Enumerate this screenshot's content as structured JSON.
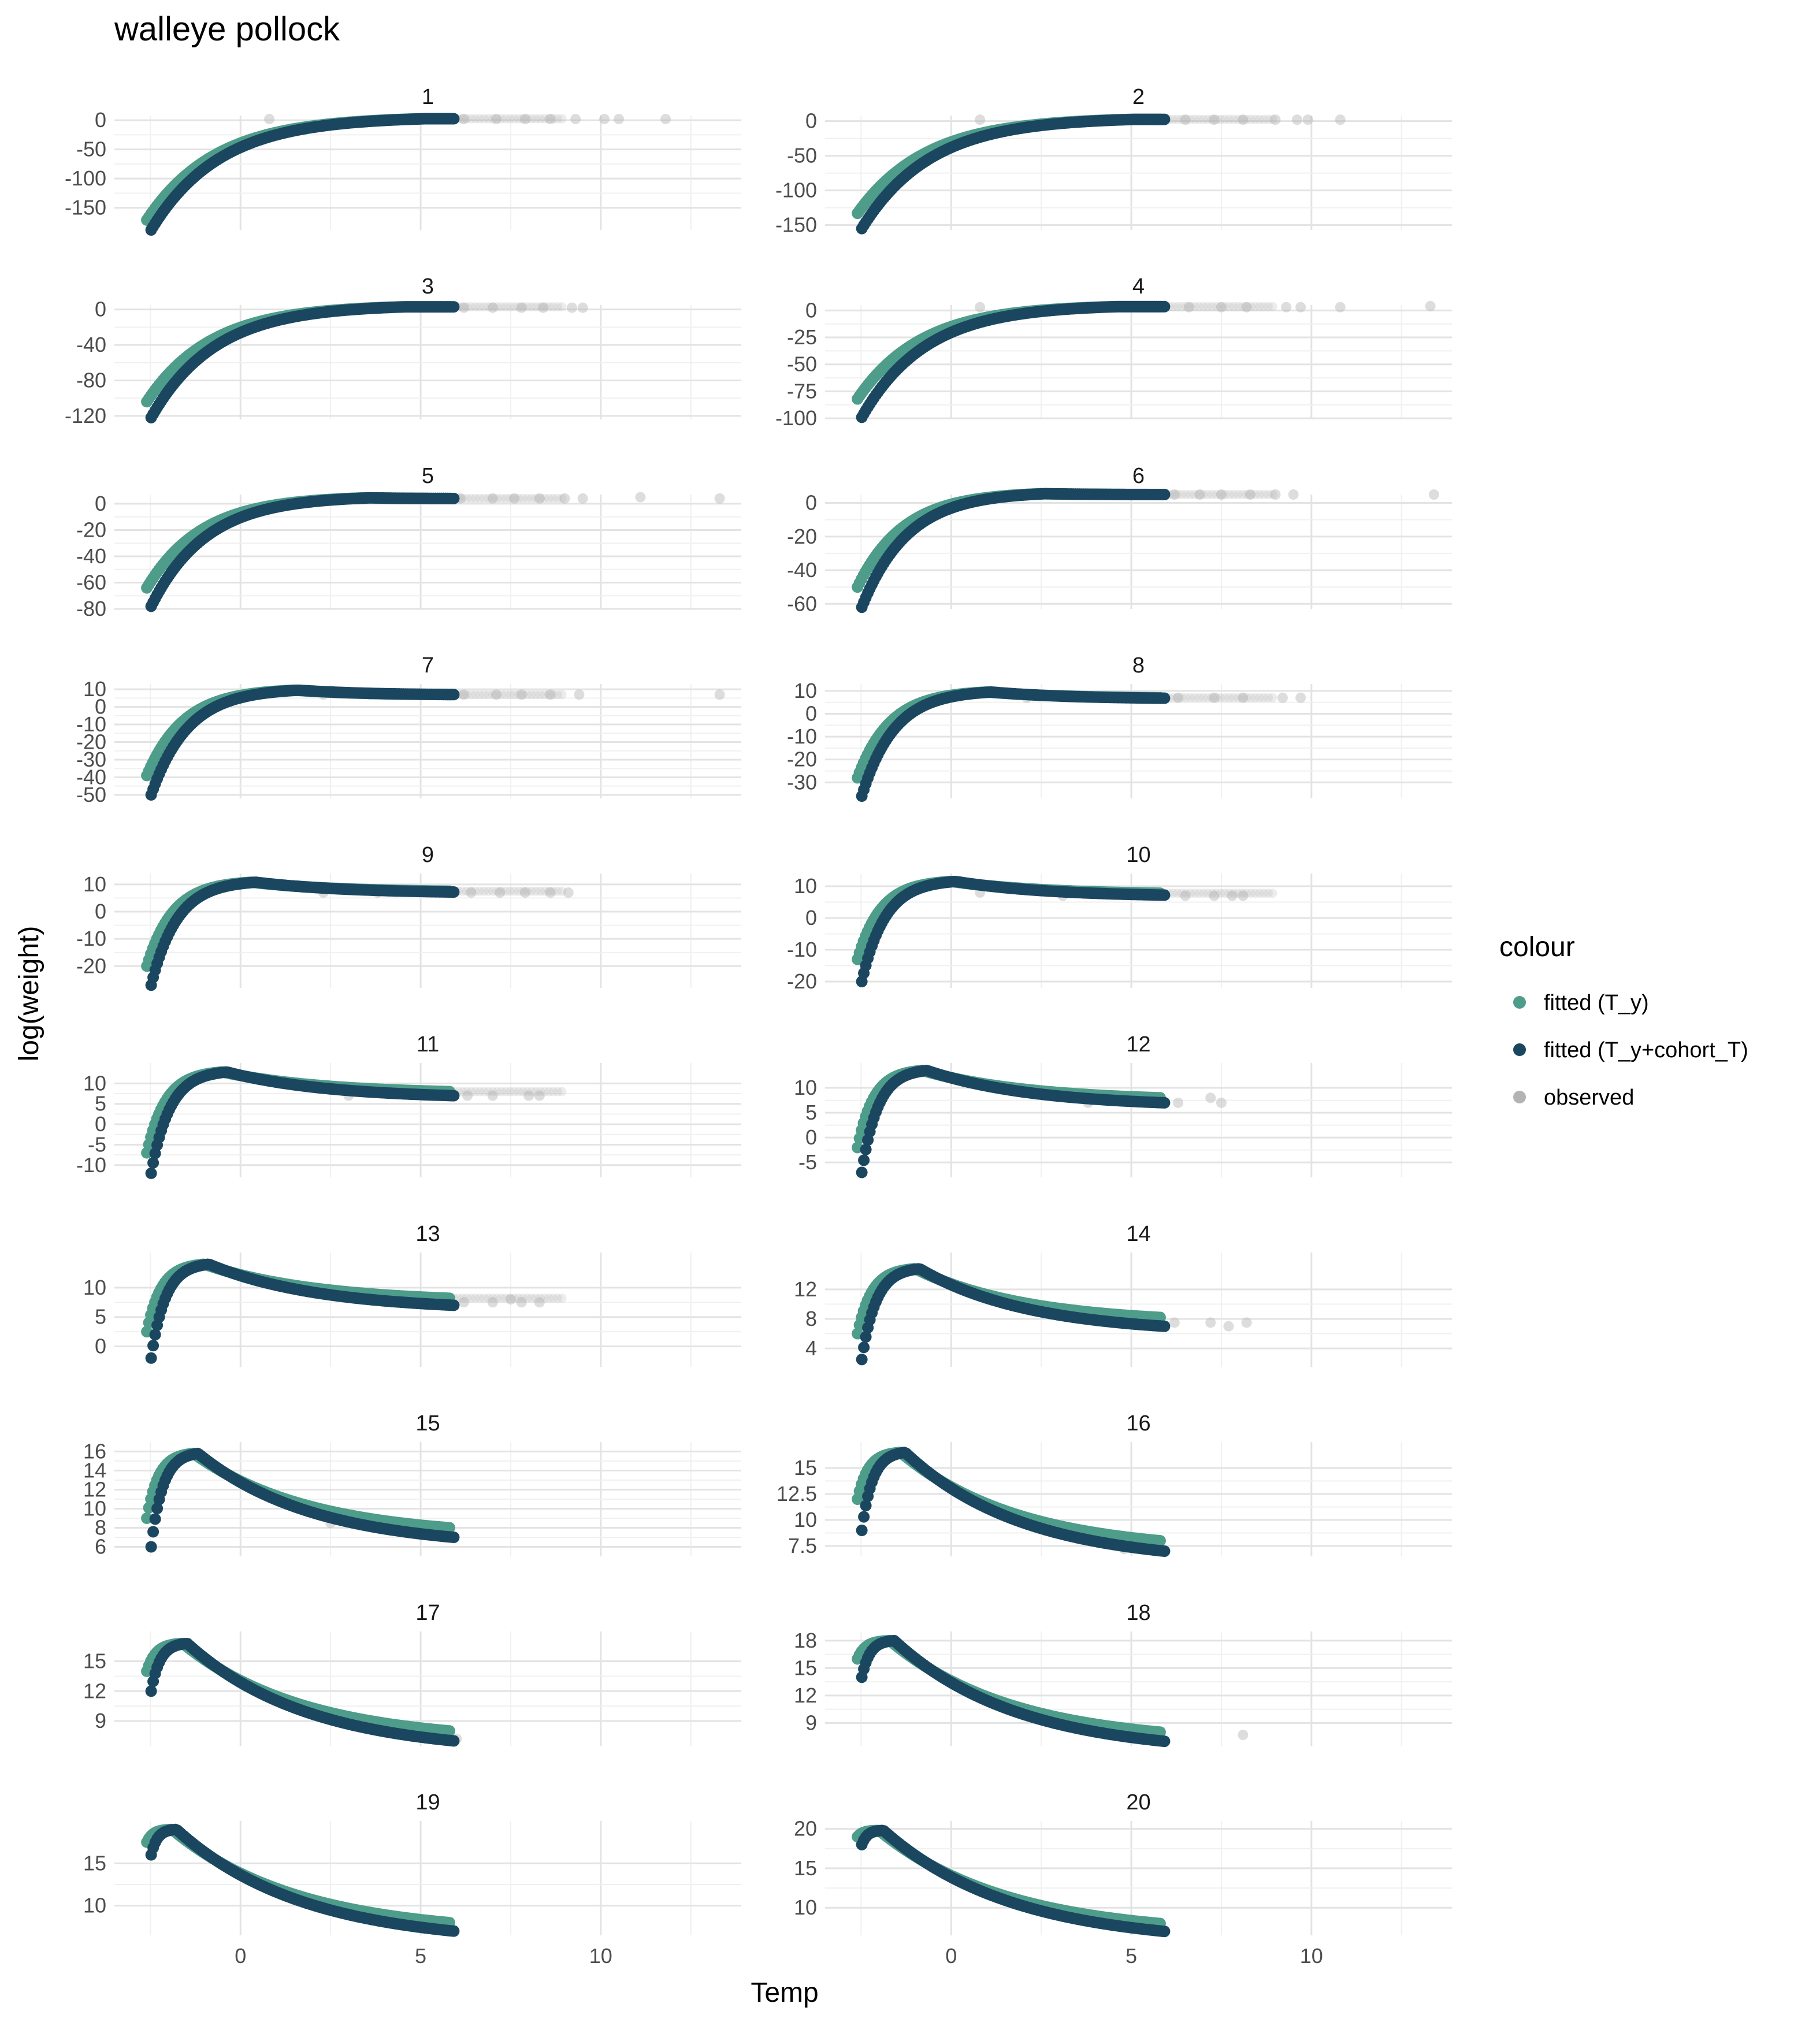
{
  "chart_data": {
    "type": "scatter",
    "title": "walleye pollock",
    "xlabel": "Temp",
    "ylabel": "log(weight)",
    "xlim": [
      -3.5,
      13.9
    ],
    "x_ticks": [
      0,
      5,
      10
    ],
    "legend": {
      "title": "colour",
      "position": "right",
      "entries": [
        {
          "label": "fitted (T_y)",
          "color": "#4e9c8a"
        },
        {
          "label": "fitted (T_y+cohort_T)",
          "color": "#1b4660"
        },
        {
          "label": "observed",
          "color": "#b3b3b3"
        }
      ]
    },
    "curve_model": {
      "description": "fitted curves: log(weight) vs temperature for ages 1-20, temperature range -2.6 to 5.8"
    },
    "panels": [
      {
        "label": "1",
        "ylim": [
          -188,
          8
        ],
        "yticks": [
          0,
          -50,
          -100,
          -150
        ],
        "fitted_min": -171,
        "cohort_min": -188,
        "peak": 2.5,
        "peak_x": 5.0,
        "end": 2.5,
        "end_cohort": 2.5,
        "obs": [
          [
            0.8,
            2
          ],
          [
            6.2,
            2
          ],
          [
            7.1,
            2
          ],
          [
            7.9,
            2
          ],
          [
            8.6,
            2
          ],
          [
            9.3,
            2
          ],
          [
            10.1,
            2
          ],
          [
            10.5,
            2
          ],
          [
            11.8,
            2
          ]
        ]
      },
      {
        "label": "2",
        "ylim": [
          -157,
          8
        ],
        "yticks": [
          0,
          -50,
          -100,
          -150
        ],
        "fitted_min": -133,
        "cohort_min": -155,
        "peak": 2.5,
        "peak_x": 5.0,
        "end": 2.5,
        "end_cohort": 2.5,
        "obs": [
          [
            0.8,
            2
          ],
          [
            6.5,
            2
          ],
          [
            7.3,
            2
          ],
          [
            8.1,
            2
          ],
          [
            9.0,
            2
          ],
          [
            9.6,
            2
          ],
          [
            9.9,
            2
          ],
          [
            10.8,
            2
          ]
        ]
      },
      {
        "label": "3",
        "ylim": [
          -124,
          5
        ],
        "yticks": [
          0,
          -40,
          -80,
          -120
        ],
        "fitted_min": -104,
        "cohort_min": -122,
        "peak": 3.0,
        "peak_x": 4.5,
        "end": 3.0,
        "end_cohort": 3.0,
        "obs": [
          [
            6.2,
            2
          ],
          [
            7.0,
            2
          ],
          [
            7.8,
            2
          ],
          [
            8.4,
            2
          ],
          [
            9.2,
            2
          ],
          [
            9.5,
            2
          ]
        ]
      },
      {
        "label": "4",
        "ylim": [
          -101,
          5
        ],
        "yticks": [
          0,
          -25,
          -50,
          -75,
          -100
        ],
        "fitted_min": -82,
        "cohort_min": -99,
        "peak": 3.5,
        "peak_x": 4.5,
        "end": 3.5,
        "end_cohort": 3.5,
        "obs": [
          [
            0.8,
            3
          ],
          [
            6.6,
            3
          ],
          [
            7.5,
            3
          ],
          [
            8.2,
            3
          ],
          [
            9.3,
            3
          ],
          [
            9.7,
            3
          ],
          [
            10.8,
            3
          ],
          [
            13.3,
            4
          ]
        ]
      },
      {
        "label": "5",
        "ylim": [
          -80,
          7
        ],
        "yticks": [
          0,
          -20,
          -40,
          -60,
          -80
        ],
        "fitted_min": -64,
        "cohort_min": -78,
        "peak": 4.5,
        "peak_x": 3.5,
        "end": 4.0,
        "end_cohort": 4.0,
        "obs": [
          [
            6.1,
            4
          ],
          [
            7.0,
            4
          ],
          [
            7.6,
            4
          ],
          [
            8.3,
            4
          ],
          [
            9.0,
            4
          ],
          [
            9.5,
            4
          ],
          [
            11.1,
            5
          ],
          [
            13.3,
            4
          ]
        ]
      },
      {
        "label": "6",
        "ylim": [
          -63,
          5
        ],
        "yticks": [
          0,
          -20,
          -40,
          -60
        ],
        "fitted_min": -50,
        "cohort_min": -62,
        "peak": 5.5,
        "peak_x": 2.5,
        "end": 5.0,
        "end_cohort": 5.0,
        "obs": [
          [
            6.2,
            5
          ],
          [
            6.9,
            5
          ],
          [
            7.5,
            5
          ],
          [
            8.3,
            5
          ],
          [
            9.0,
            5
          ],
          [
            9.5,
            5
          ],
          [
            13.4,
            5
          ]
        ]
      },
      {
        "label": "7",
        "ylim": [
          -52,
          13
        ],
        "yticks": [
          10,
          0,
          -10,
          -20,
          -30,
          -40,
          -50
        ],
        "fitted_min": -39,
        "cohort_min": -50,
        "peak": 9.5,
        "peak_x": 1.5,
        "end": 7.0,
        "end_cohort": 7.0,
        "obs": [
          [
            2.3,
            7
          ],
          [
            3.6,
            7
          ],
          [
            6.2,
            7
          ],
          [
            7.1,
            7
          ],
          [
            7.8,
            7
          ],
          [
            8.6,
            7
          ],
          [
            9.4,
            7
          ],
          [
            13.3,
            7
          ]
        ]
      },
      {
        "label": "8",
        "ylim": [
          -37,
          13
        ],
        "yticks": [
          10,
          0,
          -10,
          -20,
          -30
        ],
        "fitted_min": -28,
        "cohort_min": -36,
        "peak": 9.5,
        "peak_x": 1.0,
        "end": 7.0,
        "end_cohort": 6.8,
        "obs": [
          [
            2.1,
            7
          ],
          [
            6.3,
            7
          ],
          [
            7.3,
            7
          ],
          [
            8.1,
            7
          ],
          [
            9.2,
            7
          ],
          [
            9.7,
            7
          ]
        ]
      },
      {
        "label": "9",
        "ylim": [
          -28,
          14
        ],
        "yticks": [
          10,
          0,
          -10,
          -20
        ],
        "fitted_min": -20,
        "cohort_min": -27,
        "peak": 10.8,
        "peak_x": 0.3,
        "end": 7.5,
        "end_cohort": 7.2,
        "obs": [
          [
            2.3,
            7
          ],
          [
            3.8,
            7
          ],
          [
            6.4,
            7
          ],
          [
            7.2,
            7
          ],
          [
            7.9,
            7
          ],
          [
            8.6,
            7
          ],
          [
            9.1,
            7
          ]
        ]
      },
      {
        "label": "10",
        "ylim": [
          -22,
          14
        ],
        "yticks": [
          10,
          0,
          -10,
          -20
        ],
        "fitted_min": -13,
        "cohort_min": -20,
        "peak": 11.5,
        "peak_x": 0.0,
        "end": 7.8,
        "end_cohort": 7.2,
        "obs": [
          [
            0.8,
            8
          ],
          [
            3.1,
            7
          ],
          [
            6.5,
            7
          ],
          [
            7.3,
            7
          ],
          [
            7.8,
            7
          ],
          [
            8.1,
            7
          ]
        ]
      },
      {
        "label": "11",
        "ylim": [
          -13,
          15
        ],
        "yticks": [
          10,
          5,
          0,
          -5,
          -10
        ],
        "fitted_min": -7,
        "cohort_min": -12,
        "peak": 12.8,
        "peak_x": -0.5,
        "end": 8.0,
        "end_cohort": 7.0,
        "obs": [
          [
            3.0,
            7
          ],
          [
            6.3,
            7
          ],
          [
            7.0,
            7
          ],
          [
            8.0,
            7
          ],
          [
            8.3,
            7
          ]
        ]
      },
      {
        "label": "12",
        "ylim": [
          -8,
          15
        ],
        "yticks": [
          10,
          5,
          0,
          -5
        ],
        "fitted_min": -2,
        "cohort_min": -7,
        "peak": 13.5,
        "peak_x": -0.8,
        "end": 8.0,
        "end_cohort": 7.0,
        "obs": [
          [
            3.8,
            7
          ],
          [
            6.3,
            7
          ],
          [
            7.2,
            8
          ],
          [
            7.5,
            7
          ]
        ]
      },
      {
        "label": "13",
        "ylim": [
          -3.5,
          16
        ],
        "yticks": [
          10,
          5,
          0
        ],
        "fitted_min": 2.5,
        "cohort_min": -2,
        "peak": 14.0,
        "peak_x": -1.0,
        "end": 8.2,
        "end_cohort": 7.0,
        "obs": [
          [
            4.0,
            7.5
          ],
          [
            6.2,
            7.5
          ],
          [
            7.0,
            7.5
          ],
          [
            7.5,
            8
          ],
          [
            7.8,
            7.5
          ],
          [
            8.3,
            7.5
          ]
        ]
      },
      {
        "label": "14",
        "ylim": [
          1.5,
          17
        ],
        "yticks": [
          12,
          8,
          4
        ],
        "fitted_min": 6,
        "cohort_min": 2.5,
        "peak": 14.8,
        "peak_x": -1.0,
        "end": 8.2,
        "end_cohort": 7.0,
        "obs": [
          [
            6.2,
            7.5
          ],
          [
            7.2,
            7.5
          ],
          [
            7.7,
            7
          ],
          [
            8.2,
            7.5
          ]
        ]
      },
      {
        "label": "15",
        "ylim": [
          5,
          17
        ],
        "yticks": [
          16,
          14,
          12,
          10,
          8,
          6
        ],
        "fitted_min": 9,
        "cohort_min": 6,
        "peak": 15.8,
        "peak_x": -1.3,
        "end": 8.0,
        "end_cohort": 7.0,
        "obs": [
          [
            2.5,
            8.5
          ]
        ]
      },
      {
        "label": "16",
        "ylim": [
          6.5,
          17.5
        ],
        "yticks": [
          15.0,
          12.5,
          10.0,
          7.5
        ],
        "fitted_min": 12,
        "cohort_min": 9,
        "peak": 16.5,
        "peak_x": -1.4,
        "end": 8.0,
        "end_cohort": 7.0,
        "obs": [
          [
            4.8,
            7.2
          ]
        ]
      },
      {
        "label": "17",
        "ylim": [
          6.5,
          18
        ],
        "yticks": [
          15,
          12,
          9
        ],
        "fitted_min": 14,
        "cohort_min": 12,
        "peak": 16.8,
        "peak_x": -1.6,
        "end": 8.0,
        "end_cohort": 7.0,
        "obs": [
          [
            6.0,
            7.2
          ]
        ]
      },
      {
        "label": "18",
        "ylim": [
          6.5,
          19
        ],
        "yticks": [
          18,
          15,
          12,
          9
        ],
        "fitted_min": 16,
        "cohort_min": 14,
        "peak": 18.0,
        "peak_x": -1.7,
        "end": 8.0,
        "end_cohort": 7.0,
        "obs": [
          [
            8.1,
            7.7
          ]
        ]
      },
      {
        "label": "19",
        "ylim": [
          6.5,
          20
        ],
        "yticks": [
          15,
          10
        ],
        "fitted_min": 17.5,
        "cohort_min": 16,
        "peak": 19.0,
        "peak_x": -1.9,
        "end": 8.0,
        "end_cohort": 7.0,
        "obs": []
      },
      {
        "label": "20",
        "ylim": [
          6.5,
          21
        ],
        "yticks": [
          20,
          15,
          10
        ],
        "fitted_min": 19,
        "cohort_min": 18,
        "peak": 19.8,
        "peak_x": -2.0,
        "end": 8.0,
        "end_cohort": 7.0,
        "obs": []
      }
    ]
  }
}
